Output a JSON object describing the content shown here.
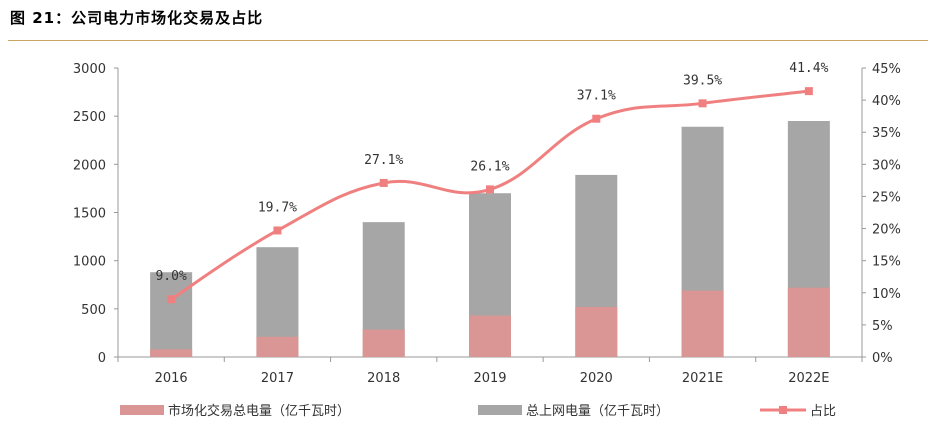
{
  "figure_title": "图 21：公司电力市场化交易及占比",
  "chart_data": {
    "type": "bar",
    "categories": [
      "2016",
      "2017",
      "2018",
      "2019",
      "2020",
      "2021E",
      "2022E"
    ],
    "series": [
      {
        "name": "总上网电量（亿千瓦时）",
        "type": "bar",
        "axis": "left",
        "color": "#a6a6a6",
        "values": [
          880,
          1140,
          1400,
          1700,
          1890,
          2390,
          2450
        ]
      },
      {
        "name": "市场化交易总电量（亿千瓦时）",
        "type": "bar",
        "axis": "left",
        "color": "#d99694",
        "values": [
          80,
          210,
          285,
          430,
          520,
          690,
          720
        ]
      },
      {
        "name": "占比",
        "type": "line",
        "axis": "right",
        "color": "#f08080",
        "values": [
          9.0,
          19.7,
          27.1,
          26.1,
          37.1,
          39.5,
          41.4
        ],
        "labels": [
          "9.0%",
          "19.7%",
          "27.1%",
          "26.1%",
          "37.1%",
          "39.5%",
          "41.4%"
        ]
      }
    ],
    "y_left": {
      "ylim": [
        0,
        3000
      ],
      "ticks": [
        "0",
        "500",
        "1000",
        "1500",
        "2000",
        "2500",
        "3000"
      ]
    },
    "y_right": {
      "ylim": [
        0,
        45
      ],
      "ticks": [
        "0%",
        "5%",
        "10%",
        "15%",
        "20%",
        "25%",
        "30%",
        "35%",
        "40%",
        "45%"
      ]
    },
    "legend": [
      "市场化交易总电量（亿千瓦时）",
      "总上网电量（亿千瓦时）",
      "占比"
    ],
    "legend_position": "bottom",
    "grid": false
  }
}
